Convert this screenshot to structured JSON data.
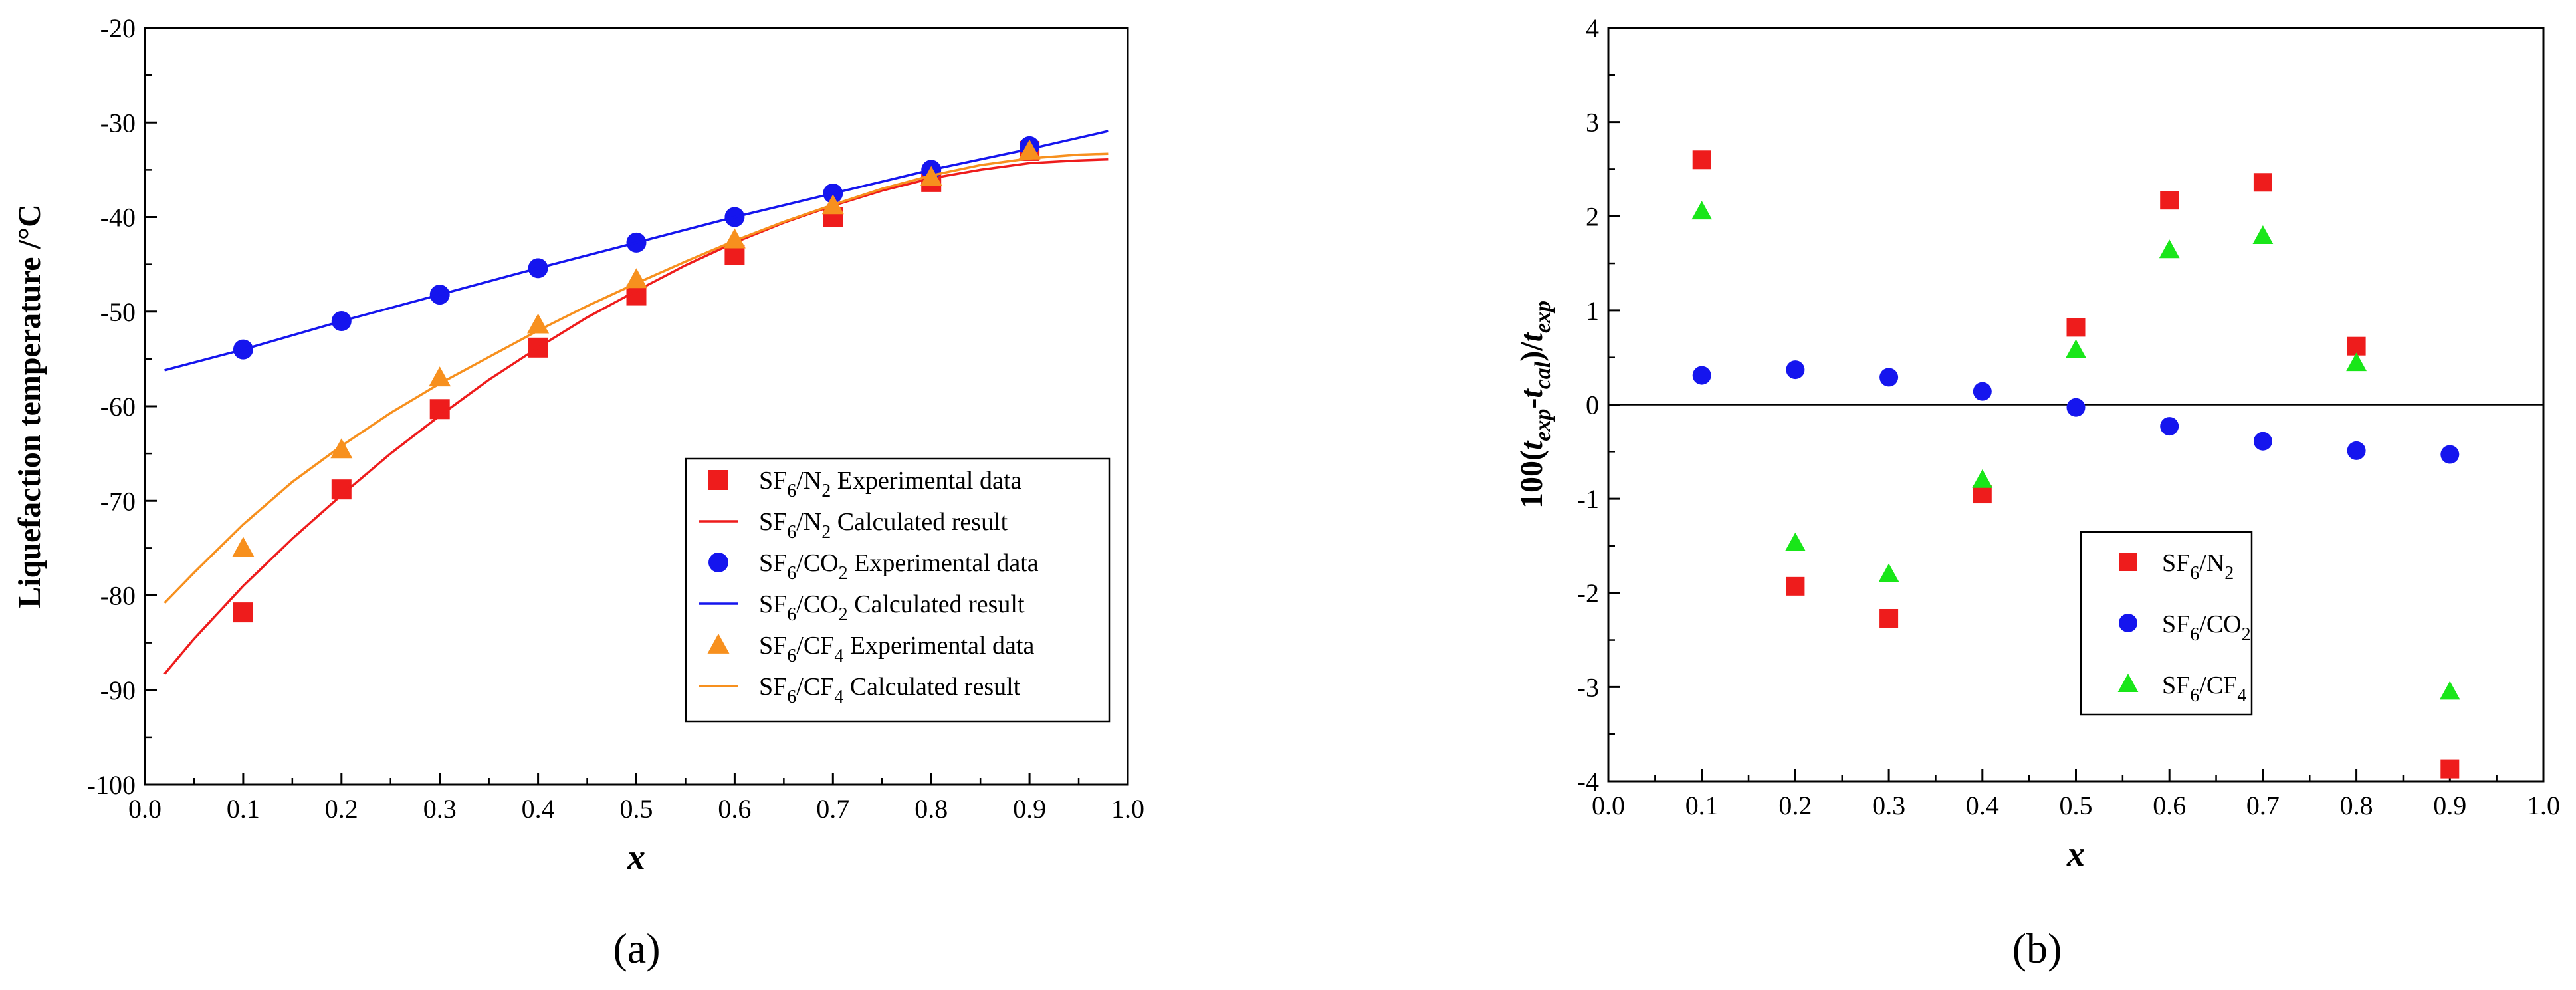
{
  "chart_data": [
    {
      "panel_label": "a",
      "type": "scatter",
      "xlabel": "x",
      "ylabel": "Liquefaction temperature /°C",
      "xlim": [
        0.0,
        1.0
      ],
      "ylim": [
        -100,
        -20
      ],
      "xticks": [
        "0.0",
        "0.1",
        "0.2",
        "0.3",
        "0.4",
        "0.5",
        "0.6",
        "0.7",
        "0.8",
        "0.9",
        "1.0"
      ],
      "yticks": [
        "-100",
        "-90",
        "-80",
        "-70",
        "-60",
        "-50",
        "-40",
        "-30",
        "-20"
      ],
      "legend_position": "lower-right",
      "series": [
        {
          "name": "SF6/N2 Experimental data",
          "legend": {
            "base": "SF",
            "sub1": "6",
            "mid": "/N",
            "sub2": "2",
            "tail": " Experimental data"
          },
          "kind": "markers",
          "marker": "square",
          "color": "#ee1c1c",
          "x": [
            0.1,
            0.2,
            0.3,
            0.4,
            0.5,
            0.6,
            0.7,
            0.8,
            0.9
          ],
          "y": [
            -81.8,
            -68.8,
            -60.3,
            -53.8,
            -48.3,
            -44.0,
            -40.0,
            -36.3,
            -33.0
          ]
        },
        {
          "name": "SF6/N2 Calculated result",
          "legend": {
            "base": "SF",
            "sub1": "6",
            "mid": "/N",
            "sub2": "2",
            "tail": " Calculated result"
          },
          "kind": "line",
          "color": "#ee1c1c",
          "x": [
            0.02,
            0.05,
            0.1,
            0.15,
            0.2,
            0.25,
            0.3,
            0.35,
            0.4,
            0.45,
            0.5,
            0.55,
            0.6,
            0.65,
            0.7,
            0.75,
            0.8,
            0.85,
            0.9,
            0.95,
            0.98
          ],
          "y": [
            -88.3,
            -84.6,
            -79.0,
            -74.0,
            -69.4,
            -65.0,
            -61.0,
            -57.2,
            -53.8,
            -50.6,
            -47.8,
            -45.1,
            -42.7,
            -40.6,
            -38.8,
            -37.2,
            -35.9,
            -35.0,
            -34.3,
            -34.0,
            -33.9
          ]
        },
        {
          "name": "SF6/CO2 Experimental data",
          "legend": {
            "base": "SF",
            "sub1": "6",
            "mid": "/CO",
            "sub2": "2",
            "tail": " Experimental data"
          },
          "kind": "markers",
          "marker": "circle",
          "color": "#1515ee",
          "x": [
            0.1,
            0.2,
            0.3,
            0.4,
            0.5,
            0.6,
            0.7,
            0.8,
            0.9
          ],
          "y": [
            -54.0,
            -51.0,
            -48.2,
            -45.4,
            -42.7,
            -40.0,
            -37.5,
            -35.0,
            -32.5
          ]
        },
        {
          "name": "SF6/CO2 Calculated result",
          "legend": {
            "base": "SF",
            "sub1": "6",
            "mid": "/CO",
            "sub2": "2",
            "tail": " Calculated result"
          },
          "kind": "line",
          "color": "#1515ee",
          "x": [
            0.02,
            0.1,
            0.2,
            0.3,
            0.4,
            0.5,
            0.6,
            0.7,
            0.8,
            0.9,
            0.98
          ],
          "y": [
            -56.2,
            -54.0,
            -51.0,
            -48.2,
            -45.4,
            -42.7,
            -40.0,
            -37.5,
            -35.0,
            -32.8,
            -30.9
          ]
        },
        {
          "name": "SF6/CF4 Experimental data",
          "legend": {
            "base": "SF",
            "sub1": "6",
            "mid": "/CF",
            "sub2": "4",
            "tail": " Experimental data"
          },
          "kind": "markers",
          "marker": "triangle",
          "color": "#f7901e",
          "x": [
            0.1,
            0.2,
            0.3,
            0.4,
            0.5,
            0.6,
            0.7,
            0.8,
            0.9
          ],
          "y": [
            -75.0,
            -64.6,
            -57.0,
            -51.4,
            -46.6,
            -42.4,
            -38.8,
            -35.8,
            -33.0
          ]
        },
        {
          "name": "SF6/CF4 Calculated result",
          "legend": {
            "base": "SF",
            "sub1": "6",
            "mid": "/CF",
            "sub2": "4",
            "tail": " Calculated result"
          },
          "kind": "line",
          "color": "#f7901e",
          "x": [
            0.02,
            0.05,
            0.1,
            0.15,
            0.2,
            0.25,
            0.3,
            0.35,
            0.4,
            0.45,
            0.5,
            0.55,
            0.6,
            0.65,
            0.7,
            0.75,
            0.8,
            0.85,
            0.9,
            0.95,
            0.98
          ],
          "y": [
            -80.8,
            -77.6,
            -72.5,
            -68.0,
            -64.2,
            -60.7,
            -57.6,
            -54.8,
            -52.0,
            -49.4,
            -47.0,
            -44.7,
            -42.5,
            -40.5,
            -38.7,
            -37.0,
            -35.6,
            -34.5,
            -33.8,
            -33.4,
            -33.3
          ]
        }
      ]
    },
    {
      "panel_label": "b",
      "type": "scatter",
      "xlabel": "x",
      "ylabel": {
        "pre": "100(",
        "t1": "t",
        "s1": "exp",
        "dash": "-",
        "t2": "t",
        "s2": "cal",
        "mid": ")/",
        "t3": "t",
        "s3": "exp"
      },
      "xlim": [
        0.0,
        1.0
      ],
      "ylim": [
        -4,
        4
      ],
      "xticks": [
        "0.0",
        "0.1",
        "0.2",
        "0.3",
        "0.4",
        "0.5",
        "0.6",
        "0.7",
        "0.8",
        "0.9",
        "1.0"
      ],
      "yticks": [
        "-4",
        "-3",
        "-2",
        "-1",
        "0",
        "1",
        "2",
        "3",
        "4"
      ],
      "zero_line": true,
      "legend_position": "lower-center",
      "series": [
        {
          "name": "SF6/N2",
          "legend": {
            "base": "SF",
            "sub1": "6",
            "mid": "/N",
            "sub2": "2",
            "tail": ""
          },
          "kind": "markers",
          "marker": "square",
          "color": "#ee1c1c",
          "x": [
            0.1,
            0.2,
            0.3,
            0.4,
            0.5,
            0.6,
            0.7,
            0.8,
            0.9
          ],
          "y": [
            2.6,
            -1.93,
            -2.27,
            -0.95,
            0.82,
            2.17,
            2.36,
            0.62,
            -3.87
          ]
        },
        {
          "name": "SF6/CO2",
          "legend": {
            "base": "SF",
            "sub1": "6",
            "mid": "/CO",
            "sub2": "2",
            "tail": ""
          },
          "kind": "markers",
          "marker": "circle",
          "color": "#1515ee",
          "x": [
            0.1,
            0.2,
            0.3,
            0.4,
            0.5,
            0.6,
            0.7,
            0.8,
            0.9
          ],
          "y": [
            0.31,
            0.37,
            0.29,
            0.14,
            -0.03,
            -0.23,
            -0.39,
            -0.49,
            -0.53
          ]
        },
        {
          "name": "SF6/CF4",
          "legend": {
            "base": "SF",
            "sub1": "6",
            "mid": "/CF",
            "sub2": "4",
            "tail": ""
          },
          "kind": "markers",
          "marker": "triangle",
          "color": "#19e619",
          "x": [
            0.1,
            0.2,
            0.3,
            0.4,
            0.5,
            0.6,
            0.7,
            0.8,
            0.9
          ],
          "y": [
            2.05,
            -1.47,
            -1.8,
            -0.8,
            0.58,
            1.64,
            1.79,
            0.44,
            -3.05
          ]
        }
      ]
    }
  ]
}
